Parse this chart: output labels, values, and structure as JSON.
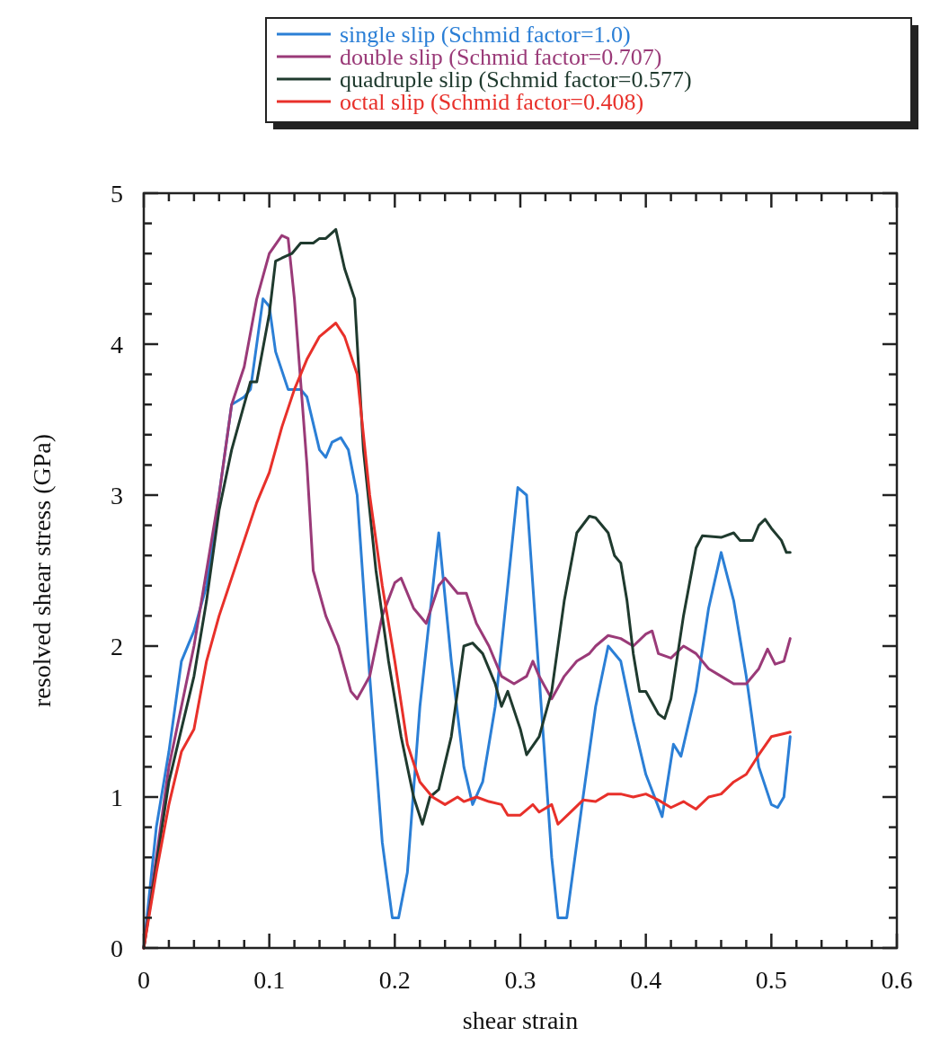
{
  "chart_data": {
    "type": "line",
    "xlabel": "shear strain",
    "ylabel": "resolved shear stress (GPa)",
    "xlim": [
      0,
      0.6
    ],
    "ylim": [
      0,
      5
    ],
    "xticks": [
      0,
      {
        "value": 0.02,
        "label": null
      },
      {
        "value": 0.04,
        "label": null
      },
      {
        "value": 0.06,
        "label": null
      },
      {
        "value": 0.08,
        "label": null
      },
      0.1,
      {
        "value": 0.12,
        "label": null
      },
      {
        "value": 0.14,
        "label": null
      },
      {
        "value": 0.16,
        "label": null
      },
      {
        "value": 0.18,
        "label": null
      },
      0.2,
      {
        "value": 0.22,
        "label": null
      },
      {
        "value": 0.24,
        "label": null
      },
      {
        "value": 0.26,
        "label": null
      },
      {
        "value": 0.28,
        "label": null
      },
      0.3,
      {
        "value": 0.32,
        "label": null
      },
      {
        "value": 0.34,
        "label": null
      },
      {
        "value": 0.36,
        "label": null
      },
      {
        "value": 0.38,
        "label": null
      },
      0.4,
      {
        "value": 0.42,
        "label": null
      },
      {
        "value": 0.44,
        "label": null
      },
      {
        "value": 0.46,
        "label": null
      },
      {
        "value": 0.48,
        "label": null
      },
      0.5,
      {
        "value": 0.52,
        "label": null
      },
      {
        "value": 0.54,
        "label": null
      },
      {
        "value": 0.56,
        "label": null
      },
      {
        "value": 0.58,
        "label": null
      },
      0.6
    ],
    "yticks": [
      0,
      {
        "value": 0.2,
        "label": null
      },
      {
        "value": 0.4,
        "label": null
      },
      {
        "value": 0.6,
        "label": null
      },
      {
        "value": 0.8,
        "label": null
      },
      1,
      {
        "value": 1.2,
        "label": null
      },
      {
        "value": 1.4,
        "label": null
      },
      {
        "value": 1.6,
        "label": null
      },
      {
        "value": 1.8,
        "label": null
      },
      2,
      {
        "value": 2.2,
        "label": null
      },
      {
        "value": 2.4,
        "label": null
      },
      {
        "value": 2.6,
        "label": null
      },
      {
        "value": 2.8,
        "label": null
      },
      3,
      {
        "value": 3.2,
        "label": null
      },
      {
        "value": 3.4,
        "label": null
      },
      {
        "value": 3.6,
        "label": null
      },
      {
        "value": 3.8,
        "label": null
      },
      4,
      {
        "value": 4.2,
        "label": null
      },
      {
        "value": 4.4,
        "label": null
      },
      {
        "value": 4.6,
        "label": null
      },
      {
        "value": 4.8,
        "label": null
      },
      5
    ],
    "grid": false,
    "legend": "top",
    "marker": "none",
    "line_style": "solid",
    "series": [
      {
        "name": "single slip (Schmid factor=1.0)",
        "color": "#2b7fd6",
        "x": [
          0,
          0.01,
          0.02,
          0.03,
          0.04,
          0.05,
          0.06,
          0.07,
          0.08,
          0.085,
          0.095,
          0.1,
          0.105,
          0.115,
          0.125,
          0.13,
          0.14,
          0.145,
          0.15,
          0.157,
          0.163,
          0.17,
          0.18,
          0.19,
          0.198,
          0.203,
          0.21,
          0.22,
          0.235,
          0.245,
          0.255,
          0.262,
          0.27,
          0.28,
          0.29,
          0.298,
          0.305,
          0.315,
          0.325,
          0.33,
          0.337,
          0.35,
          0.36,
          0.37,
          0.38,
          0.39,
          0.4,
          0.413,
          0.422,
          0.428,
          0.44,
          0.45,
          0.46,
          0.47,
          0.48,
          0.49,
          0.5,
          0.505,
          0.51,
          0.515
        ],
        "values": [
          0,
          0.8,
          1.3,
          1.9,
          2.1,
          2.4,
          3.0,
          3.6,
          3.65,
          3.7,
          4.3,
          4.25,
          3.95,
          3.7,
          3.7,
          3.65,
          3.3,
          3.25,
          3.35,
          3.38,
          3.3,
          3.0,
          1.8,
          0.7,
          0.2,
          0.2,
          0.5,
          1.6,
          2.75,
          1.9,
          1.2,
          0.95,
          1.1,
          1.6,
          2.4,
          3.05,
          3.0,
          1.8,
          0.6,
          0.2,
          0.2,
          1.0,
          1.6,
          2.0,
          1.9,
          1.5,
          1.15,
          0.87,
          1.35,
          1.27,
          1.7,
          2.25,
          2.62,
          2.3,
          1.8,
          1.2,
          0.95,
          0.93,
          1.0,
          1.4
        ]
      },
      {
        "name": "double slip (Schmid factor=0.707)",
        "color": "#9a3a78",
        "x": [
          0,
          0.02,
          0.04,
          0.05,
          0.06,
          0.07,
          0.08,
          0.09,
          0.1,
          0.11,
          0.115,
          0.12,
          0.13,
          0.135,
          0.145,
          0.155,
          0.165,
          0.17,
          0.18,
          0.19,
          0.2,
          0.205,
          0.215,
          0.225,
          0.235,
          0.24,
          0.25,
          0.257,
          0.265,
          0.275,
          0.285,
          0.295,
          0.305,
          0.31,
          0.315,
          0.325,
          0.335,
          0.345,
          0.355,
          0.36,
          0.37,
          0.38,
          0.39,
          0.4,
          0.405,
          0.41,
          0.42,
          0.43,
          0.44,
          0.45,
          0.46,
          0.47,
          0.48,
          0.49,
          0.497,
          0.503,
          0.51,
          0.515
        ],
        "values": [
          0,
          1.2,
          2.0,
          2.5,
          3.0,
          3.6,
          3.85,
          4.3,
          4.6,
          4.72,
          4.7,
          4.3,
          3.2,
          2.5,
          2.2,
          2.0,
          1.7,
          1.65,
          1.8,
          2.2,
          2.42,
          2.45,
          2.25,
          2.15,
          2.4,
          2.45,
          2.35,
          2.35,
          2.15,
          2.0,
          1.8,
          1.75,
          1.8,
          1.9,
          1.8,
          1.65,
          1.8,
          1.9,
          1.95,
          2.0,
          2.07,
          2.05,
          2.0,
          2.08,
          2.1,
          1.95,
          1.92,
          2.0,
          1.95,
          1.85,
          1.8,
          1.75,
          1.75,
          1.85,
          1.98,
          1.88,
          1.9,
          2.05
        ]
      },
      {
        "name": "quadruple slip (Schmid factor=0.577)",
        "color": "#1f3a2e",
        "x": [
          0,
          0.02,
          0.04,
          0.05,
          0.06,
          0.07,
          0.08,
          0.085,
          0.09,
          0.1,
          0.105,
          0.11,
          0.118,
          0.125,
          0.135,
          0.14,
          0.145,
          0.153,
          0.16,
          0.168,
          0.175,
          0.185,
          0.195,
          0.205,
          0.215,
          0.222,
          0.228,
          0.235,
          0.245,
          0.255,
          0.262,
          0.27,
          0.28,
          0.285,
          0.29,
          0.3,
          0.305,
          0.315,
          0.325,
          0.335,
          0.345,
          0.355,
          0.36,
          0.37,
          0.375,
          0.38,
          0.385,
          0.39,
          0.395,
          0.4,
          0.41,
          0.415,
          0.42,
          0.43,
          0.44,
          0.445,
          0.46,
          0.47,
          0.475,
          0.485,
          0.49,
          0.495,
          0.5,
          0.508,
          0.512,
          0.515
        ],
        "values": [
          0,
          1.1,
          1.8,
          2.3,
          2.9,
          3.3,
          3.6,
          3.75,
          3.75,
          4.2,
          4.55,
          4.57,
          4.6,
          4.67,
          4.67,
          4.7,
          4.7,
          4.76,
          4.5,
          4.3,
          3.3,
          2.5,
          1.9,
          1.4,
          1.0,
          0.82,
          1.0,
          1.05,
          1.4,
          2.0,
          2.02,
          1.95,
          1.75,
          1.6,
          1.7,
          1.45,
          1.28,
          1.4,
          1.7,
          2.3,
          2.75,
          2.86,
          2.85,
          2.75,
          2.6,
          2.55,
          2.3,
          1.95,
          1.7,
          1.7,
          1.55,
          1.52,
          1.65,
          2.2,
          2.65,
          2.73,
          2.72,
          2.75,
          2.7,
          2.7,
          2.8,
          2.84,
          2.78,
          2.7,
          2.62,
          2.62
        ]
      },
      {
        "name": "octal slip (Schmid factor=0.408)",
        "color": "#e8302a",
        "x": [
          0,
          0.01,
          0.02,
          0.03,
          0.04,
          0.05,
          0.06,
          0.07,
          0.08,
          0.09,
          0.1,
          0.11,
          0.12,
          0.13,
          0.14,
          0.153,
          0.16,
          0.17,
          0.18,
          0.19,
          0.2,
          0.21,
          0.22,
          0.23,
          0.24,
          0.25,
          0.255,
          0.265,
          0.275,
          0.285,
          0.29,
          0.3,
          0.31,
          0.315,
          0.325,
          0.33,
          0.34,
          0.35,
          0.36,
          0.37,
          0.38,
          0.39,
          0.4,
          0.41,
          0.42,
          0.43,
          0.44,
          0.45,
          0.46,
          0.47,
          0.48,
          0.49,
          0.5,
          0.51,
          0.515
        ],
        "values": [
          0,
          0.5,
          0.95,
          1.3,
          1.45,
          1.9,
          2.2,
          2.45,
          2.7,
          2.95,
          3.15,
          3.45,
          3.7,
          3.9,
          4.05,
          4.14,
          4.05,
          3.8,
          3.0,
          2.4,
          1.9,
          1.35,
          1.1,
          1.0,
          0.95,
          1.0,
          0.97,
          1.0,
          0.97,
          0.95,
          0.88,
          0.88,
          0.95,
          0.9,
          0.95,
          0.82,
          0.9,
          0.98,
          0.97,
          1.02,
          1.02,
          1.0,
          1.02,
          0.98,
          0.93,
          0.97,
          0.92,
          1.0,
          1.02,
          1.1,
          1.15,
          1.28,
          1.4,
          1.42,
          1.43
        ]
      }
    ]
  }
}
